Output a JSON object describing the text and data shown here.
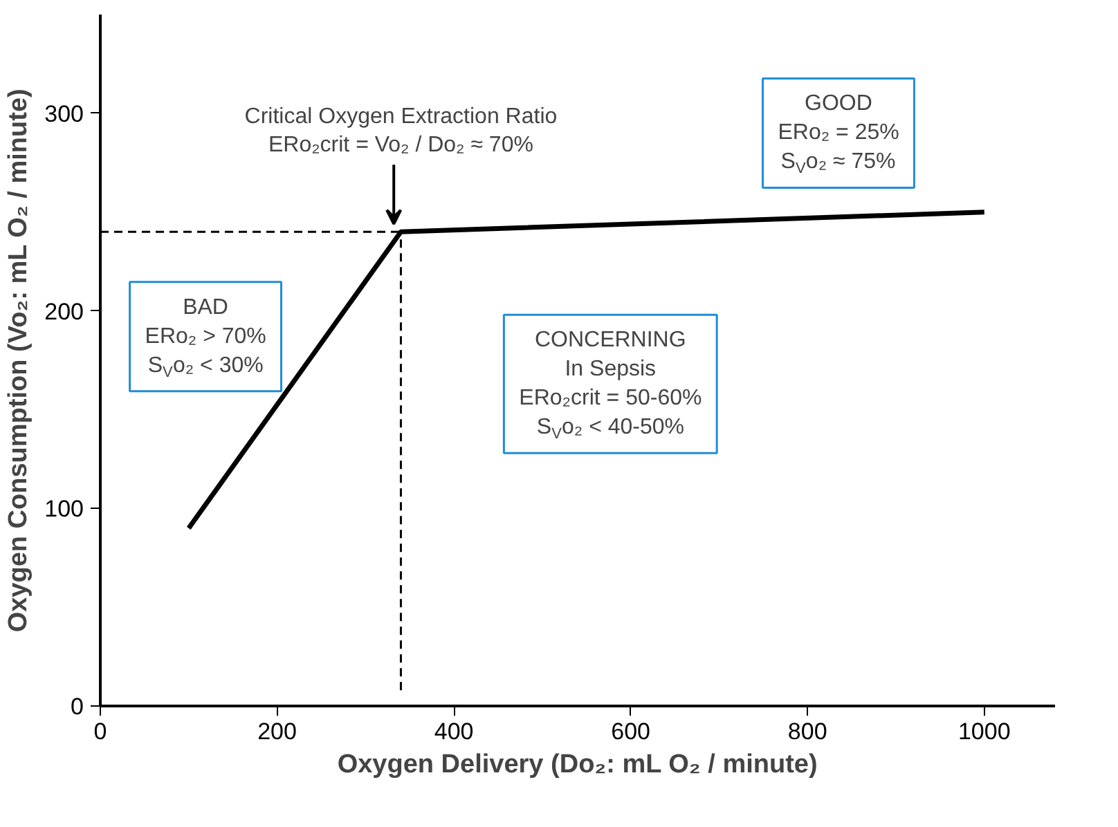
{
  "chart_data": {
    "type": "line",
    "xlabel": "Oxygen Delivery (Do₂: mL O₂ / minute)",
    "ylabel": "Oxygen Consumption (Vo₂: mL O₂ / minute)",
    "xlim": [
      0,
      1080
    ],
    "ylim": [
      0,
      350
    ],
    "xticks": [
      0,
      200,
      400,
      600,
      800,
      1000
    ],
    "yticks": [
      0,
      100,
      200,
      300
    ],
    "grid": false,
    "marker": "none",
    "series": [
      {
        "color": "#000000",
        "x": [
          100,
          340,
          1000
        ],
        "values": [
          90,
          240,
          250
        ],
        "line_style": "solid"
      },
      {
        "color": "#000000",
        "x": [
          0,
          340
        ],
        "values": [
          240,
          240
        ],
        "line_style": "dashed"
      },
      {
        "color": "#000000",
        "x": [
          340,
          340
        ],
        "values": [
          8,
          240
        ],
        "line_style": "dashed"
      }
    ],
    "annotations": [
      {
        "text": "Critical Oxygen Extraction Ratio\nERo₂crit = Vo₂ / Do₂ ≈ 70%",
        "x": 340,
        "y": 240
      },
      "BAD\nERo₂ > 70%\nS$_{V}$o₂ < 30%",
      "CONCERNING\nIn Sepsis\nERo₂crit = 50-60%\nS$_{V}$o₂ < 40-50%",
      "GOOD\nERo₂ = 25%\nS$_{V}$o₂ ≈ 75%"
    ]
  }
}
